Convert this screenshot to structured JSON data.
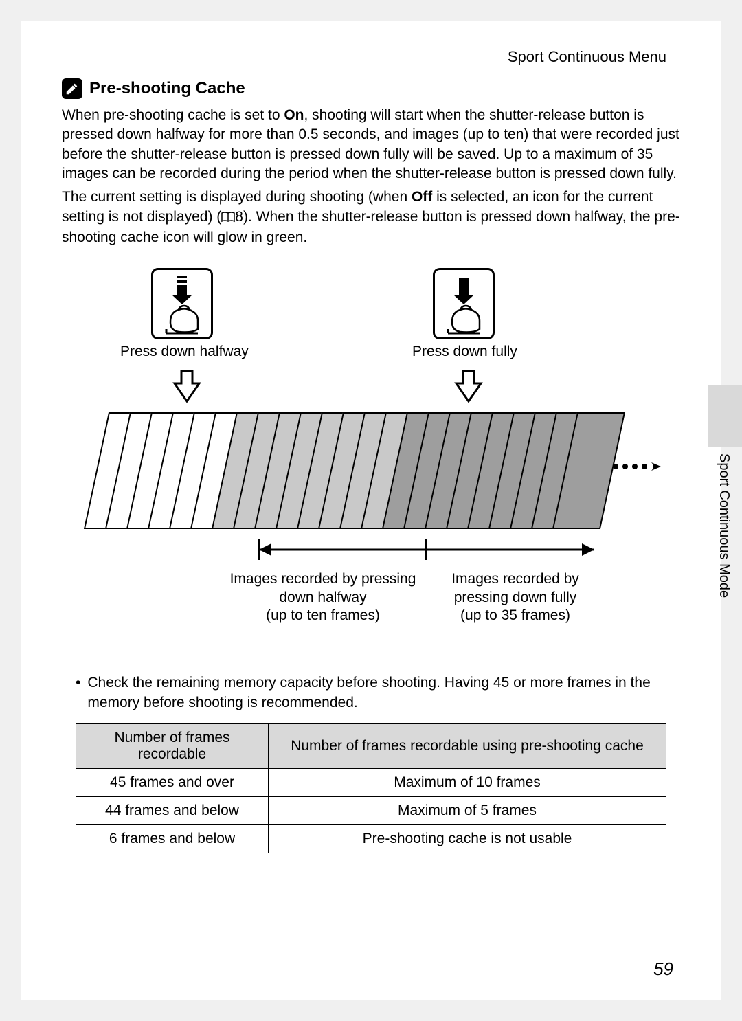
{
  "header": {
    "title": "Sport Continuous Menu"
  },
  "section": {
    "title": "Pre-shooting Cache",
    "para1_a": "When pre-shooting cache is set to ",
    "para1_b_bold": "On",
    "para1_c": ", shooting will start when the shutter-release button is pressed down halfway for more than 0.5 seconds, and images (up to ten) that were recorded just before the shutter-release button is pressed down fully will be saved. Up to a maximum of 35 images can be recorded during the period when the shutter-release button is pressed down fully.",
    "para2_a": "The current setting is displayed during shooting (when ",
    "para2_b_bold": "Off",
    "para2_c": " is selected, an icon for the current setting is not displayed) (",
    "para2_ref": "8",
    "para2_d": "). When the shutter-release button is pressed down halfway, the pre-shooting cache icon will glow in green."
  },
  "diagram": {
    "press_half_label": "Press down halfway",
    "press_full_label": "Press down fully",
    "caption_half_1": "Images recorded by pressing",
    "caption_half_2": "down halfway",
    "caption_half_3": "(up to ten frames)",
    "caption_full_1": "Images recorded by",
    "caption_full_2": "pressing down fully",
    "caption_full_3": "(up to 35 frames)",
    "frame_count": 23,
    "grey_start": 6,
    "dark_start": 14,
    "frame_spacing": 31,
    "colors": {
      "white": "#ffffff",
      "grey": "#c9c9c9",
      "dark": "#9e9e9e",
      "border": "#000000"
    }
  },
  "side": {
    "label": "Sport Continuous Mode"
  },
  "bullet": {
    "text": "Check the remaining memory capacity before shooting. Having 45 or more frames in the memory before shooting is recommended."
  },
  "table": {
    "header_left_1": "Number of frames",
    "header_left_2": "recordable",
    "header_right": "Number of frames recordable using pre-shooting cache",
    "rows": [
      {
        "left": "45 frames and over",
        "right": "Maximum of 10 frames"
      },
      {
        "left": "44 frames and below",
        "right": "Maximum of 5 frames"
      },
      {
        "left": "6 frames and below",
        "right": "Pre-shooting cache is not usable"
      }
    ]
  },
  "page_number": "59"
}
